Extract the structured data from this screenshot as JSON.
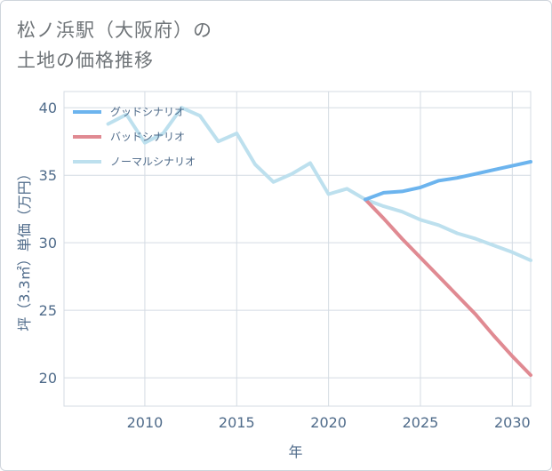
{
  "title_line1": "松ノ浜駅（大阪府）の",
  "title_line2": "土地の価格推移",
  "chart_data": {
    "type": "line",
    "xlabel": "年",
    "ylabel": "坪（3.3㎡）単価（万円）",
    "xlim": [
      2005.6,
      2031
    ],
    "ylim": [
      17.9,
      41.2
    ],
    "xticks": [
      2010,
      2015,
      2020,
      2025,
      2030
    ],
    "yticks": [
      20,
      25,
      30,
      35,
      40
    ],
    "grid": true,
    "legend_position": "top-left",
    "series": [
      {
        "name": "グッドシナリオ",
        "color": "#6cb4ee",
        "x": [
          2022,
          2023,
          2024,
          2025,
          2026,
          2027,
          2028,
          2029,
          2030,
          2031
        ],
        "y": [
          33.2,
          33.7,
          33.8,
          34.1,
          34.6,
          34.8,
          35.1,
          35.4,
          35.7,
          36.0
        ]
      },
      {
        "name": "バッドシナリオ",
        "color": "#e08a92",
        "x": [
          2022,
          2023,
          2024,
          2025,
          2026,
          2027,
          2028,
          2029,
          2030,
          2031
        ],
        "y": [
          33.2,
          31.8,
          30.3,
          28.9,
          27.5,
          26.1,
          24.7,
          23.1,
          21.6,
          20.2
        ]
      },
      {
        "name": "ノーマルシナリオ",
        "color": "#bde0ee",
        "x": [
          2008,
          2009,
          2010,
          2011,
          2012,
          2013,
          2014,
          2015,
          2016,
          2017,
          2018,
          2019,
          2020,
          2021,
          2022,
          2023,
          2024,
          2025,
          2026,
          2027,
          2028,
          2029,
          2030,
          2031
        ],
        "y": [
          38.8,
          39.5,
          37.4,
          38.1,
          40.0,
          39.4,
          37.5,
          38.1,
          35.8,
          34.5,
          35.1,
          35.9,
          33.6,
          34.0,
          33.2,
          32.7,
          32.3,
          31.7,
          31.3,
          30.7,
          30.3,
          29.8,
          29.3,
          28.7
        ]
      }
    ]
  }
}
